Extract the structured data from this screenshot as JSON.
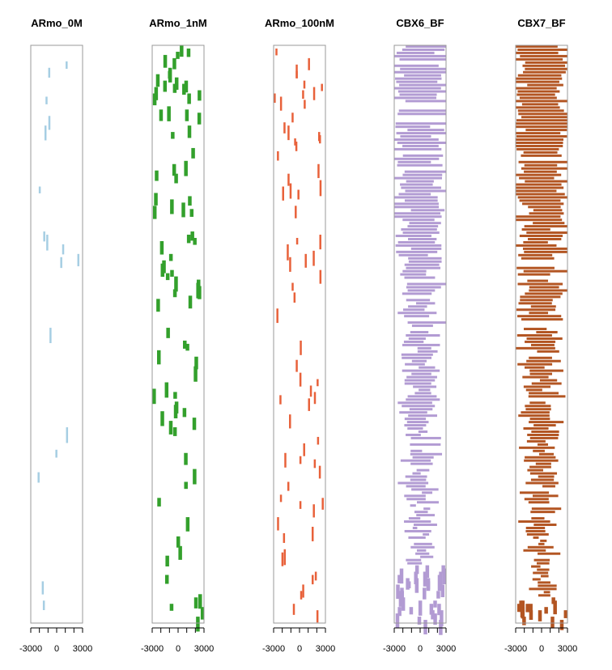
{
  "chart_data": [
    {
      "type": "heatmap",
      "title": "ARmo_0M",
      "color": "#a6cee3",
      "xlim": [
        -3000,
        3000
      ],
      "xticks": [
        -3000,
        -2000,
        -1000,
        0,
        1000,
        2000,
        3000
      ],
      "xtick_labels": [
        "-3000",
        "0",
        "3000"
      ],
      "density": [
        0.02,
        0.02,
        0.02,
        0.015,
        0.015,
        0.01
      ],
      "seed": 11
    },
    {
      "type": "heatmap",
      "title": "ARmo_1nM",
      "color": "#33a02c",
      "xlim": [
        -3000,
        3000
      ],
      "xticks": [
        -3000,
        -2000,
        -1000,
        0,
        1000,
        2000,
        3000
      ],
      "xtick_labels": [
        "-3000",
        "0",
        "3000"
      ],
      "density": [
        0.12,
        0.08,
        0.07,
        0.06,
        0.05,
        0.04
      ],
      "seed": 23
    },
    {
      "type": "heatmap",
      "title": "ARmo_100nM",
      "color": "#e8613a",
      "xlim": [
        -3000,
        3000
      ],
      "xticks": [
        -3000,
        -2000,
        -1000,
        0,
        1000,
        2000,
        3000
      ],
      "xtick_labels": [
        "-3000",
        "0",
        "3000"
      ],
      "density": [
        0.05,
        0.05,
        0.045,
        0.04,
        0.04,
        0.035
      ],
      "seed": 37
    },
    {
      "type": "heatmap",
      "title": "CBX6_BF",
      "color": "#b29bd3",
      "xlim": [
        -3000,
        3000
      ],
      "xticks": [
        -3000,
        -2000,
        -1000,
        0,
        1000,
        2000,
        3000
      ],
      "xtick_labels": [
        "-3000",
        "0",
        "3000"
      ],
      "density": [
        0.98,
        0.8,
        0.6,
        0.45,
        0.35,
        0.25
      ],
      "seed": 41
    },
    {
      "type": "heatmap",
      "title": "CBX7_BF",
      "color": "#b35522",
      "xlim": [
        -3000,
        3000
      ],
      "xticks": [
        -3000,
        -2000,
        -1000,
        0,
        1000,
        2000,
        3000
      ],
      "xtick_labels": [
        "-3000",
        "0",
        "3000"
      ],
      "density": [
        0.99,
        0.85,
        0.65,
        0.5,
        0.38,
        0.28
      ],
      "seed": 53
    }
  ]
}
